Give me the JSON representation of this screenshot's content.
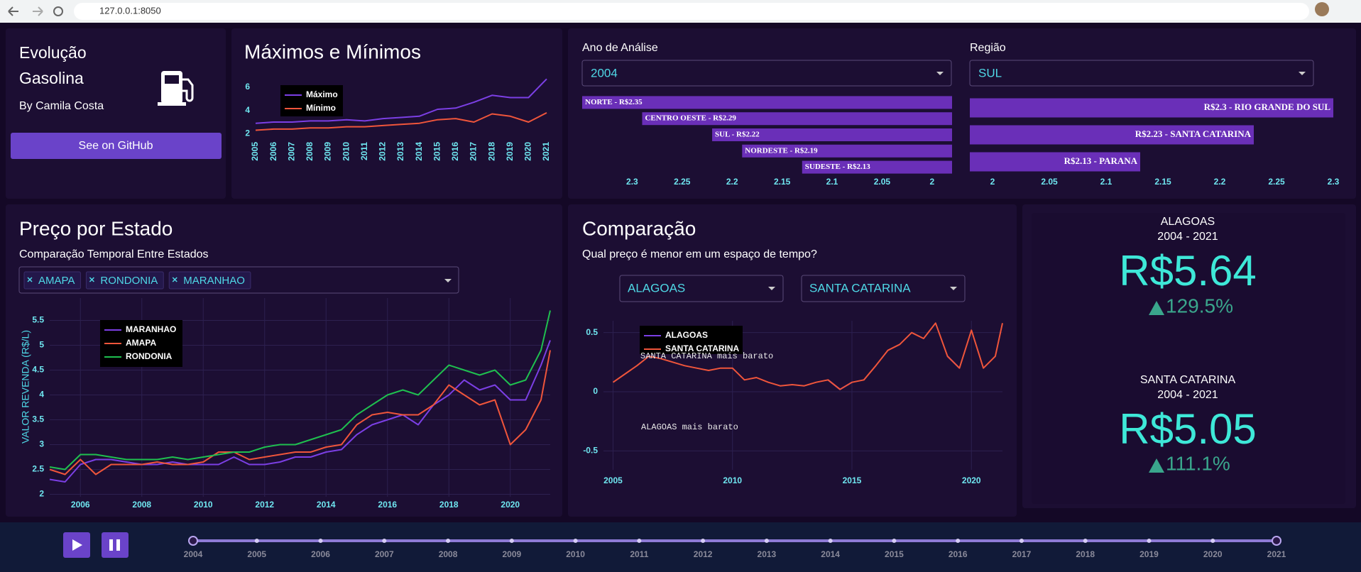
{
  "browser": {
    "url": "127.0.0.1:8050"
  },
  "sidebar": {
    "title_lines": [
      "Evolução",
      "Gasolina"
    ],
    "author": "By Camila Costa",
    "button": "See on GitHub"
  },
  "controls": {
    "year": {
      "label": "Ano de Análise",
      "selected": "2004"
    },
    "region": {
      "label": "Região",
      "selected": "SUL"
    },
    "states": {
      "selected": [
        "AMAPA",
        "RONDONIA",
        "MARANHAO"
      ]
    },
    "compare": {
      "selected": [
        "ALAGOAS",
        "SANTA CATARINA"
      ]
    }
  },
  "chart_data": [
    {
      "type": "line",
      "title": "Máximos e Mínimos",
      "x": [
        2005,
        2006,
        2007,
        2008,
        2009,
        2010,
        2011,
        2012,
        2013,
        2014,
        2015,
        2016,
        2017,
        2018,
        2019,
        2020,
        2021
      ],
      "series": [
        {
          "name": "Máximo",
          "color": "#7b3fe4",
          "values": [
            2.9,
            3.0,
            3.0,
            3.1,
            3.1,
            3.2,
            3.1,
            3.3,
            3.4,
            3.5,
            4.1,
            4.2,
            4.7,
            5.3,
            5.1,
            5.1,
            6.7
          ]
        },
        {
          "name": "Mínimo",
          "color": "#ef553b",
          "values": [
            2.3,
            2.4,
            2.4,
            2.5,
            2.5,
            2.6,
            2.6,
            2.7,
            2.8,
            2.9,
            3.2,
            3.3,
            3.0,
            3.7,
            3.5,
            3.0,
            3.8
          ]
        }
      ],
      "xlim": [
        2005,
        2021
      ],
      "xticks": [
        2005,
        2006,
        2007,
        2008,
        2009,
        2010,
        2011,
        2012,
        2013,
        2014,
        2015,
        2016,
        2017,
        2018,
        2019,
        2020,
        2021
      ],
      "ylim": [
        1.6,
        6.9
      ],
      "yticks": [
        2,
        4,
        6
      ],
      "grid": false
    },
    {
      "type": "hbar",
      "color": "#6a2fb8",
      "values": [
        2.35,
        2.29,
        2.22,
        2.19,
        2.13
      ],
      "value_labels": [
        "NORTE - R$2.35",
        "CENTRO OESTE - R$2.29",
        "SUL - R$2.22",
        "NORDESTE - R$2.19",
        "SUDESTE - R$2.13"
      ],
      "xlim": [
        2.35,
        1.98
      ],
      "xticks": [
        2.3,
        2.25,
        2.2,
        2.15,
        2.1,
        2.05,
        2
      ]
    },
    {
      "type": "hbar",
      "color": "#6a2fb8",
      "values": [
        2.3,
        2.23,
        2.13
      ],
      "value_labels": [
        "R$2.3 - RIO GRANDE DO SUL",
        "R$2.23 - SANTA CATARINA",
        "R$2.13 - PARANA"
      ],
      "xlim": [
        1.98,
        2.3
      ],
      "xticks": [
        2,
        2.05,
        2.1,
        2.15,
        2.2,
        2.25,
        2.3
      ]
    },
    {
      "type": "line",
      "title": "Preço por Estado",
      "subtitle": "Comparação Temporal Entre Estados",
      "y_label": "VALOR REVENDA (R$/L)",
      "x": [
        2005,
        2005.5,
        2006,
        2006.5,
        2007,
        2007.5,
        2008,
        2008.5,
        2009,
        2009.5,
        2010,
        2010.5,
        2011,
        2011.5,
        2012,
        2012.5,
        2013,
        2013.5,
        2014,
        2014.5,
        2015,
        2015.5,
        2016,
        2016.5,
        2017,
        2017.5,
        2018,
        2018.5,
        2019,
        2019.5,
        2020,
        2020.5,
        2021,
        2021.3
      ],
      "series": [
        {
          "name": "MARANHAO",
          "color": "#7b3fe4",
          "values": [
            2.3,
            2.25,
            2.6,
            2.7,
            2.7,
            2.65,
            2.6,
            2.6,
            2.65,
            2.6,
            2.6,
            2.6,
            2.75,
            2.6,
            2.6,
            2.65,
            2.75,
            2.75,
            2.85,
            2.9,
            3.2,
            3.4,
            3.5,
            3.6,
            3.4,
            3.8,
            4.0,
            4.3,
            4.1,
            4.2,
            3.9,
            3.9,
            4.6,
            5.1
          ]
        },
        {
          "name": "AMAPA",
          "color": "#ef553b",
          "values": [
            2.5,
            2.4,
            2.7,
            2.4,
            2.6,
            2.6,
            2.6,
            2.65,
            2.6,
            2.6,
            2.65,
            2.85,
            2.85,
            2.7,
            2.75,
            2.8,
            2.85,
            2.85,
            2.95,
            3.0,
            3.4,
            3.6,
            3.65,
            3.6,
            3.6,
            3.8,
            4.2,
            4.0,
            3.8,
            3.9,
            3.0,
            3.3,
            3.9,
            4.9
          ]
        },
        {
          "name": "RONDONIA",
          "color": "#1fbf4f",
          "values": [
            2.55,
            2.5,
            2.8,
            2.8,
            2.75,
            2.7,
            2.7,
            2.7,
            2.75,
            2.7,
            2.75,
            2.8,
            2.85,
            2.85,
            2.95,
            3.0,
            3.0,
            3.1,
            3.2,
            3.3,
            3.6,
            3.8,
            4.0,
            4.1,
            4.0,
            4.3,
            4.6,
            4.5,
            4.4,
            4.5,
            4.2,
            4.3,
            4.9,
            5.7
          ]
        }
      ],
      "xlim": [
        2005,
        2021.3
      ],
      "xticks": [
        2006,
        2008,
        2010,
        2012,
        2014,
        2016,
        2018,
        2020
      ],
      "ylim": [
        1.95,
        5.95
      ],
      "yticks": [
        2,
        2.5,
        3,
        3.5,
        4,
        4.5,
        5,
        5.5
      ],
      "grid": true
    },
    {
      "type": "line",
      "title": "Comparação",
      "subtitle": "Qual preço é menor em um espaço de tempo?",
      "annotations": [
        "SANTA CATARINA mais barato",
        "ALAGOAS mais barato"
      ],
      "x": [
        2005,
        2005.5,
        2006,
        2006.5,
        2007,
        2007.5,
        2008,
        2008.5,
        2009,
        2009.5,
        2010,
        2010.5,
        2011,
        2011.5,
        2012,
        2012.5,
        2013,
        2013.5,
        2014,
        2014.5,
        2015,
        2015.5,
        2016,
        2016.5,
        2017,
        2017.5,
        2018,
        2018.5,
        2019,
        2019.5,
        2020,
        2020.5,
        2021,
        2021.3
      ],
      "series": [
        {
          "name": "ALAGOAS",
          "color": "#7b3fe4",
          "values": [
            null,
            null,
            null,
            null,
            null,
            null,
            null,
            null,
            null,
            null,
            null,
            null,
            null,
            null,
            null,
            null,
            null,
            null,
            0.1,
            0.02,
            0.08,
            null,
            null,
            null,
            null,
            null,
            null,
            null,
            0.3,
            0.2,
            null,
            null,
            null,
            null
          ]
        },
        {
          "name": "SANTA CATARINA",
          "color": "#ef553b",
          "values": [
            0.08,
            0.15,
            0.22,
            0.3,
            0.28,
            0.25,
            0.22,
            0.2,
            0.18,
            0.2,
            0.2,
            0.1,
            0.12,
            0.08,
            0.05,
            0.06,
            0.05,
            0.08,
            0.1,
            0.02,
            0.08,
            0.1,
            0.22,
            0.35,
            0.4,
            0.5,
            0.45,
            0.58,
            0.3,
            0.2,
            0.52,
            0.2,
            0.3,
            0.58
          ]
        }
      ],
      "xlim": [
        2004.6,
        2021.3
      ],
      "xticks": [
        2005,
        2010,
        2015,
        2020
      ],
      "ylim": [
        -0.66,
        0.6
      ],
      "yticks": [
        -0.5,
        0,
        0.5
      ],
      "grid": true
    }
  ],
  "kpi": [
    {
      "state": "ALAGOAS",
      "period": "2004 - 2021",
      "price": "R$5.64",
      "change": "129.5%"
    },
    {
      "state": "SANTA CATARINA",
      "period": "2004 - 2021",
      "price": "R$5.05",
      "change": "111.1%"
    }
  ],
  "slider": {
    "marks": [
      2004,
      2005,
      2006,
      2007,
      2008,
      2009,
      2010,
      2011,
      2012,
      2013,
      2014,
      2015,
      2016,
      2017,
      2018,
      2019,
      2020,
      2021
    ],
    "value": [
      2004,
      2021
    ]
  }
}
